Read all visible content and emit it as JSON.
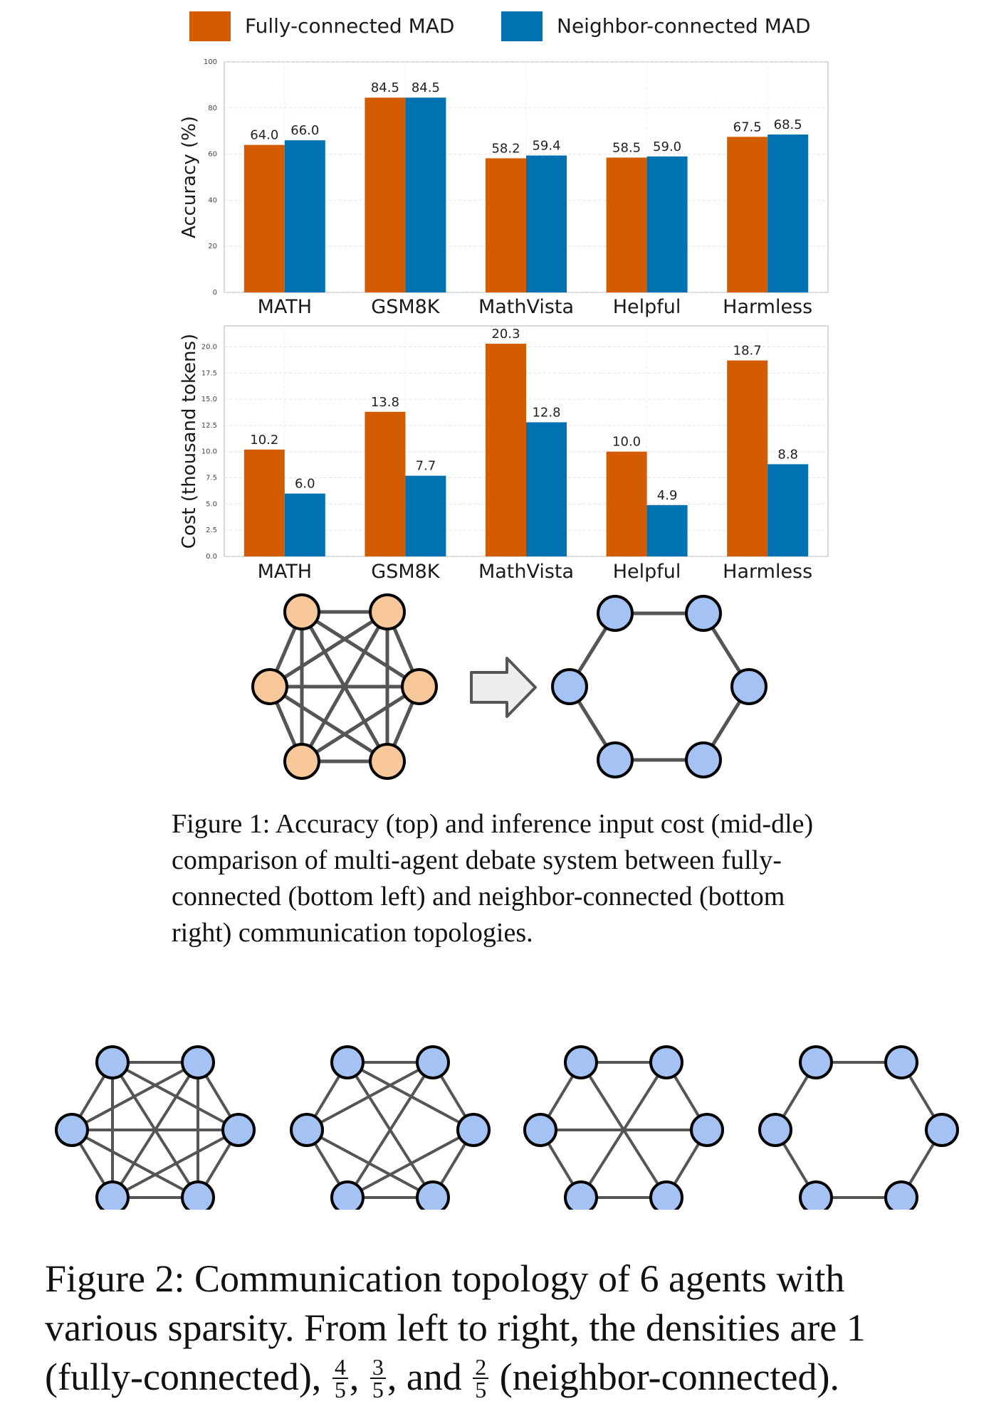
{
  "legend": [
    {
      "label": "Fully-connected MAD",
      "color": "#d45c00"
    },
    {
      "label": "Neighbor-connected MAD",
      "color": "#0072b2"
    }
  ],
  "chart_data": [
    {
      "type": "bar",
      "categories": [
        "MATH",
        "GSM8K",
        "MathVista",
        "Helpful",
        "Harmless"
      ],
      "series": [
        {
          "name": "Fully-connected MAD",
          "values": [
            64.0,
            84.5,
            58.2,
            58.5,
            67.5
          ],
          "labels": [
            "64.0",
            "84.5",
            "58.2",
            "58.5",
            "67.5"
          ]
        },
        {
          "name": "Neighbor-connected MAD",
          "values": [
            66.0,
            84.5,
            59.4,
            59.0,
            68.5
          ],
          "labels": [
            "66.0",
            "84.5",
            "59.4",
            "59.0",
            "68.5"
          ]
        }
      ],
      "ylabel": "Accuracy (%)",
      "ylim": [
        0,
        100
      ],
      "yticks": [
        "0",
        "20",
        "40",
        "60",
        "80",
        "100"
      ],
      "ytick_values": [
        0,
        20,
        40,
        60,
        80,
        100
      ],
      "grid": true
    },
    {
      "type": "bar",
      "categories": [
        "MATH",
        "GSM8K",
        "MathVista",
        "Helpful",
        "Harmless"
      ],
      "series": [
        {
          "name": "Fully-connected MAD",
          "values": [
            10.2,
            13.8,
            20.3,
            10.0,
            18.7
          ],
          "labels": [
            "10.2",
            "13.8",
            "20.3",
            "10.0",
            "18.7"
          ]
        },
        {
          "name": "Neighbor-connected MAD",
          "values": [
            6.0,
            7.7,
            12.8,
            4.9,
            8.8
          ],
          "labels": [
            "6.0",
            "7.7",
            "12.8",
            "4.9",
            "8.8"
          ]
        }
      ],
      "ylabel": "Cost (thousand tokens)",
      "ylim": [
        0,
        22
      ],
      "yticks": [
        "0.0",
        "2.5",
        "5.0",
        "7.5",
        "10.0",
        "12.5",
        "15.0",
        "17.5",
        "20.0"
      ],
      "ytick_values": [
        0,
        2.5,
        5,
        7.5,
        10,
        12.5,
        15,
        17.5,
        20
      ],
      "grid": true
    }
  ],
  "topology": {
    "fully_connected_node_color": "#f8c89a",
    "neighbor_node_color": "#a4c2f4",
    "edge_color": "#555555",
    "figure1_graphs": [
      "fully-connected",
      "neighbor-connected"
    ],
    "figure2_graphs": [
      "fully-connected",
      "4/5",
      "3/5",
      "neighbor-connected"
    ]
  },
  "captions": {
    "figure1": {
      "label": "Figure 1:",
      "text": "Accuracy (top) and inference input cost (mid-dle) comparison of multi-agent debate system between fully-connected (bottom left) and neighbor-connected (bottom right) communication topologies."
    },
    "figure2": {
      "label": "Figure 2:",
      "text_before": "Communication topology of 6 agents with various sparsity. From left to right, the densities are 1 (fully-connected),",
      "frac1_num": "4",
      "frac1_den": "5",
      "frac2_num": "3",
      "frac2_den": "5",
      "and": ", and",
      "frac3_num": "2",
      "frac3_den": "5",
      "text_after": "(neighbor-connected)."
    }
  }
}
